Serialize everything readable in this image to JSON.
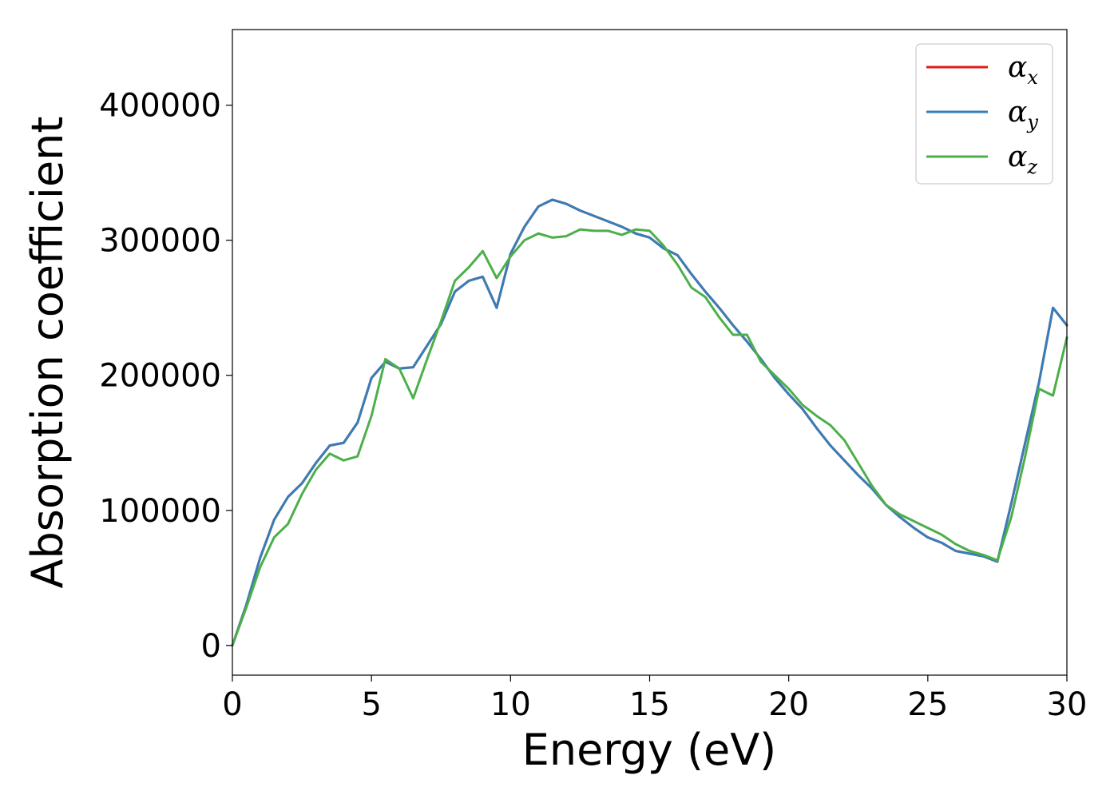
{
  "chart_data": {
    "type": "line",
    "xlabel": "Energy (eV)",
    "ylabel": "Absorption coefficient",
    "xlim": [
      0,
      30
    ],
    "ylim": [
      -22000,
      456000
    ],
    "x_ticks": [
      0,
      5,
      10,
      15,
      20,
      25,
      30
    ],
    "x_tick_labels": [
      "0",
      "5",
      "10",
      "15",
      "20",
      "25",
      "30"
    ],
    "y_ticks": [
      0,
      100000,
      200000,
      300000,
      400000
    ],
    "y_tick_labels": [
      "0",
      "100000",
      "200000",
      "300000",
      "400000"
    ],
    "grid": false,
    "legend_position": "top-right",
    "x": [
      0,
      0.5,
      1,
      1.5,
      2,
      2.5,
      3,
      3.5,
      4,
      4.5,
      5,
      5.5,
      6,
      6.5,
      7,
      7.5,
      8,
      8.5,
      9,
      9.5,
      10,
      10.5,
      11,
      11.5,
      12,
      12.5,
      13,
      13.5,
      14,
      14.5,
      15,
      15.5,
      16,
      16.5,
      17,
      17.5,
      18,
      18.5,
      19,
      19.5,
      20,
      20.5,
      21,
      21.5,
      22,
      22.5,
      23,
      23.5,
      24,
      24.5,
      25,
      25.5,
      26,
      26.5,
      27,
      27.5,
      28,
      28.5,
      29,
      29.5,
      30
    ],
    "series": [
      {
        "name": "α_x",
        "label_main": "α",
        "label_sub": "x",
        "color": "#e41a1c",
        "values": [
          0,
          30000,
          65000,
          93000,
          110000,
          120000,
          135000,
          148000,
          150000,
          165000,
          198000,
          210000,
          205000,
          206000,
          222000,
          238000,
          262000,
          270000,
          273000,
          250000,
          290000,
          310000,
          325000,
          330000,
          327000,
          322000,
          318000,
          314000,
          310000,
          305000,
          302000,
          294000,
          289000,
          275000,
          262000,
          250000,
          237000,
          225000,
          212000,
          198000,
          186000,
          175000,
          161000,
          148000,
          137000,
          126000,
          116000,
          104000,
          95000,
          87000,
          80000,
          76000,
          70000,
          68000,
          66000,
          62000,
          105000,
          150000,
          195000,
          250000,
          237000
        ]
      },
      {
        "name": "α_y",
        "label_main": "α",
        "label_sub": "y",
        "color": "#377eb8",
        "values": [
          0,
          30000,
          65000,
          93000,
          110000,
          120000,
          135000,
          148000,
          150000,
          165000,
          198000,
          210000,
          205000,
          206000,
          222000,
          238000,
          262000,
          270000,
          273000,
          250000,
          290000,
          310000,
          325000,
          330000,
          327000,
          322000,
          318000,
          314000,
          310000,
          305000,
          302000,
          294000,
          289000,
          275000,
          262000,
          250000,
          237000,
          225000,
          212000,
          198000,
          186000,
          175000,
          161000,
          148000,
          137000,
          126000,
          116000,
          104000,
          95000,
          87000,
          80000,
          76000,
          70000,
          68000,
          66000,
          62000,
          105000,
          150000,
          195000,
          250000,
          237000
        ]
      },
      {
        "name": "α_z",
        "label_main": "α",
        "label_sub": "z",
        "color": "#4daf4a",
        "values": [
          0,
          28000,
          58000,
          80000,
          90000,
          112000,
          130000,
          142000,
          137000,
          140000,
          170000,
          212000,
          205000,
          183000,
          212000,
          240000,
          270000,
          280000,
          292000,
          272000,
          288000,
          300000,
          305000,
          302000,
          303000,
          308000,
          307000,
          307000,
          304000,
          308000,
          307000,
          296000,
          282000,
          265000,
          258000,
          243000,
          230000,
          230000,
          210000,
          200000,
          190000,
          178000,
          170000,
          163000,
          152000,
          135000,
          118000,
          104000,
          97000,
          92000,
          87000,
          82000,
          75000,
          70000,
          67000,
          63000,
          95000,
          140000,
          190000,
          185000,
          228000
        ]
      }
    ]
  }
}
